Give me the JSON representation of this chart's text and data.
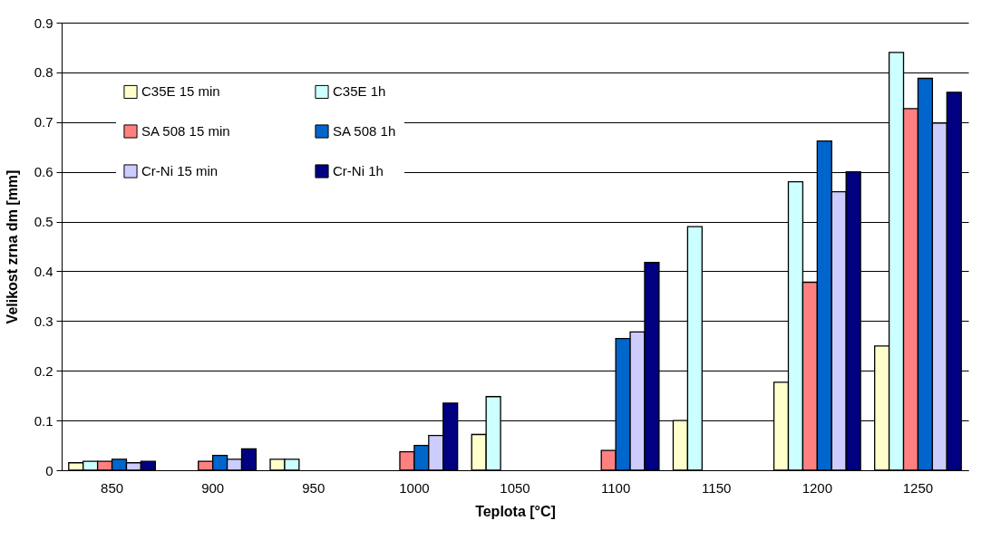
{
  "chart_data": {
    "type": "bar",
    "xlabel": "Teplota [°C]",
    "ylabel": "Velikost zrna dm [mm]",
    "categories": [
      "850",
      "900",
      "950",
      "1000",
      "1050",
      "1100",
      "1150",
      "1200",
      "1250"
    ],
    "series": [
      {
        "name": "C35E 15 min",
        "color": "#ffffcc",
        "values": [
          0.015,
          null,
          0.022,
          null,
          0.072,
          null,
          0.1,
          0.177,
          0.25
        ]
      },
      {
        "name": "C35E 1h",
        "color": "#ccffff",
        "values": [
          0.018,
          null,
          0.022,
          null,
          0.148,
          null,
          0.49,
          0.58,
          0.84
        ]
      },
      {
        "name": "SA 508 15 min",
        "color": "#ff8080",
        "values": [
          0.018,
          0.018,
          null,
          0.037,
          null,
          0.04,
          null,
          0.378,
          0.727
        ]
      },
      {
        "name": "SA 508 1h",
        "color": "#0066cc",
        "values": [
          0.022,
          0.03,
          null,
          0.05,
          null,
          0.265,
          null,
          0.662,
          0.788
        ]
      },
      {
        "name": "Cr-Ni 15 min",
        "color": "#ccccff",
        "values": [
          0.015,
          0.022,
          null,
          0.07,
          null,
          0.278,
          null,
          0.56,
          0.698
        ]
      },
      {
        "name": "Cr-Ni 1h",
        "color": "#000080",
        "values": [
          0.018,
          0.043,
          null,
          0.135,
          null,
          0.418,
          null,
          0.6,
          0.76
        ]
      }
    ],
    "ylim": [
      0,
      0.9
    ],
    "yticks": [
      0,
      0.1,
      0.2,
      0.3,
      0.4,
      0.5,
      0.6,
      0.7,
      0.8,
      0.9
    ],
    "grid": "y",
    "legend": "top left"
  }
}
